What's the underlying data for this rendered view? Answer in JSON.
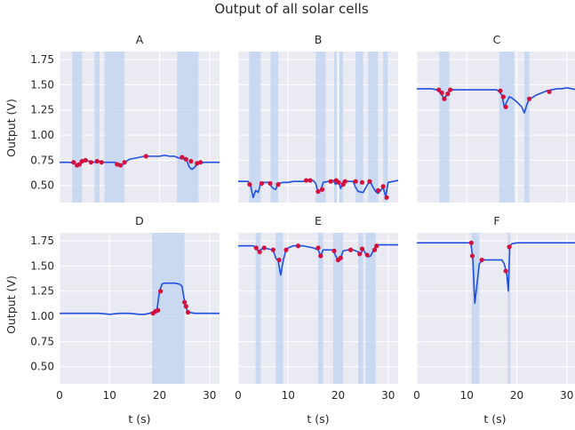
{
  "figure": {
    "suptitle": "Output of all solar cells",
    "xlabel": "t (s)",
    "ylabel": "Output (V)"
  },
  "colors": {
    "panel_background": "#eaeaf2",
    "grid": "#ffffff",
    "line": "#1f4fe0",
    "span": "#c4d6f2",
    "marker": "#d3103d"
  },
  "chart_data": [
    {
      "type": "line",
      "title": "A",
      "xlim": [
        0,
        32
      ],
      "ylim": [
        0.33,
        1.83
      ],
      "xticks": [
        0,
        10,
        20,
        30
      ],
      "yticks": [
        0.5,
        0.75,
        1.0,
        1.25,
        1.5,
        1.75
      ],
      "grid": true,
      "spans": [
        [
          2.5,
          4.5
        ],
        [
          7.0,
          8.0
        ],
        [
          9.0,
          13.0
        ],
        [
          23.5,
          27.8
        ]
      ],
      "series": [
        {
          "x": [
            0,
            1,
            2,
            3,
            3.5,
            4,
            4.5,
            5,
            6,
            7,
            7.5,
            8,
            9,
            10,
            11,
            12,
            12.5,
            13,
            14,
            15,
            16,
            17,
            18,
            19,
            20,
            21,
            22,
            23,
            23.5,
            24,
            25,
            25.5,
            26,
            26.5,
            27,
            27.5,
            28,
            29,
            30,
            31,
            32
          ],
          "y": [
            0.73,
            0.73,
            0.73,
            0.72,
            0.7,
            0.71,
            0.74,
            0.75,
            0.74,
            0.73,
            0.74,
            0.74,
            0.73,
            0.73,
            0.73,
            0.71,
            0.7,
            0.73,
            0.76,
            0.77,
            0.78,
            0.79,
            0.79,
            0.79,
            0.79,
            0.8,
            0.79,
            0.79,
            0.78,
            0.77,
            0.76,
            0.74,
            0.68,
            0.66,
            0.68,
            0.71,
            0.72,
            0.73,
            0.73,
            0.73,
            0.73
          ]
        }
      ],
      "markers": {
        "x": [
          2.8,
          3.5,
          4.0,
          4.5,
          5.2,
          6.3,
          7.5,
          8.4,
          11.5,
          12.2,
          13.0,
          17.3,
          24.5,
          25.3,
          26.3,
          27.5,
          28.2
        ],
        "y": [
          0.73,
          0.7,
          0.71,
          0.74,
          0.75,
          0.73,
          0.74,
          0.73,
          0.71,
          0.7,
          0.73,
          0.79,
          0.78,
          0.76,
          0.74,
          0.72,
          0.73
        ]
      }
    },
    {
      "type": "line",
      "title": "B",
      "xlim": [
        0,
        32
      ],
      "ylim": [
        0.33,
        1.83
      ],
      "xticks": [
        0,
        10,
        20,
        30
      ],
      "yticks": [
        0.5,
        0.75,
        1.0,
        1.25,
        1.5,
        1.75
      ],
      "grid": true,
      "spans": [
        [
          2.2,
          4.5
        ],
        [
          6.5,
          8.0
        ],
        [
          15.5,
          17.5
        ],
        [
          19.2,
          19.7
        ],
        [
          20.2,
          21.0
        ],
        [
          23.5,
          25.0
        ],
        [
          26.0,
          28.0
        ],
        [
          29.0,
          30.0
        ]
      ],
      "series": [
        {
          "x": [
            0,
            1,
            2,
            2.5,
            3,
            3.5,
            4,
            4.5,
            5,
            6,
            7,
            7.5,
            8,
            9,
            10,
            11,
            12,
            13,
            14,
            15,
            15.5,
            16,
            16.5,
            17,
            18,
            19,
            19.5,
            20,
            20.5,
            21,
            22,
            23,
            23.5,
            24,
            25,
            26,
            26.5,
            27,
            27.5,
            28,
            29,
            29.5,
            30,
            31,
            32
          ],
          "y": [
            0.54,
            0.54,
            0.54,
            0.5,
            0.38,
            0.45,
            0.43,
            0.52,
            0.53,
            0.53,
            0.47,
            0.46,
            0.52,
            0.53,
            0.53,
            0.54,
            0.54,
            0.54,
            0.55,
            0.55,
            0.52,
            0.43,
            0.45,
            0.53,
            0.54,
            0.55,
            0.51,
            0.55,
            0.47,
            0.54,
            0.54,
            0.54,
            0.48,
            0.44,
            0.43,
            0.52,
            0.53,
            0.48,
            0.44,
            0.42,
            0.48,
            0.39,
            0.53,
            0.54,
            0.55
          ]
        }
      ],
      "markers": {
        "x": [
          2.3,
          4.7,
          6.4,
          8.0,
          13.6,
          14.4,
          16.0,
          16.8,
          18.5,
          19.6,
          20.1,
          21.0,
          21.4,
          23.5,
          24.8,
          26.3,
          28.0,
          29.0,
          29.7
        ],
        "y": [
          0.51,
          0.52,
          0.52,
          0.51,
          0.55,
          0.55,
          0.44,
          0.46,
          0.54,
          0.55,
          0.53,
          0.51,
          0.54,
          0.54,
          0.53,
          0.54,
          0.45,
          0.49,
          0.38
        ]
      }
    },
    {
      "type": "line",
      "title": "C",
      "xlim": [
        0,
        32
      ],
      "ylim": [
        0.33,
        1.83
      ],
      "xticks": [
        0,
        10,
        20,
        30
      ],
      "yticks": [
        0.5,
        0.75,
        1.0,
        1.25,
        1.5,
        1.75
      ],
      "grid": true,
      "spans": [
        [
          4.5,
          6.5
        ],
        [
          16.5,
          19.5
        ],
        [
          21.5,
          22.5
        ]
      ],
      "series": [
        {
          "x": [
            0,
            1,
            2,
            3,
            4,
            4.5,
            5,
            5.5,
            6,
            6.5,
            7,
            8,
            9,
            10,
            11,
            12,
            13,
            14,
            15,
            16,
            16.5,
            17,
            17.5,
            18,
            18.5,
            19,
            19.5,
            20,
            21,
            21.5,
            22,
            22.5,
            23,
            24,
            25,
            26,
            27,
            28,
            29,
            30,
            31,
            32
          ],
          "y": [
            1.46,
            1.46,
            1.46,
            1.46,
            1.45,
            1.43,
            1.4,
            1.36,
            1.4,
            1.44,
            1.45,
            1.45,
            1.45,
            1.45,
            1.45,
            1.45,
            1.45,
            1.45,
            1.45,
            1.45,
            1.43,
            1.4,
            1.28,
            1.33,
            1.38,
            1.37,
            1.35,
            1.33,
            1.28,
            1.22,
            1.3,
            1.36,
            1.37,
            1.4,
            1.42,
            1.44,
            1.45,
            1.46,
            1.46,
            1.47,
            1.46,
            1.45
          ]
        }
      ],
      "markers": {
        "x": [
          4.4,
          5.0,
          5.5,
          6.2,
          6.7,
          16.7,
          17.3,
          17.8,
          22.5,
          26.5
        ],
        "y": [
          1.45,
          1.42,
          1.36,
          1.41,
          1.45,
          1.44,
          1.38,
          1.28,
          1.36,
          1.43
        ]
      }
    },
    {
      "type": "line",
      "title": "D",
      "xlim": [
        0,
        32
      ],
      "ylim": [
        0.33,
        1.83
      ],
      "xticks": [
        0,
        10,
        20,
        30
      ],
      "yticks": [
        0.5,
        0.75,
        1.0,
        1.25,
        1.5,
        1.75
      ],
      "grid": true,
      "spans": [
        [
          18.5,
          25.0
        ]
      ],
      "series": [
        {
          "x": [
            0,
            2,
            4,
            6,
            8,
            10,
            12,
            14,
            16,
            17,
            18,
            18.5,
            19,
            19.5,
            20,
            20.5,
            21,
            22,
            23,
            24,
            24.5,
            25,
            25.5,
            26,
            27,
            28,
            30,
            32
          ],
          "y": [
            1.03,
            1.03,
            1.03,
            1.03,
            1.03,
            1.02,
            1.03,
            1.03,
            1.02,
            1.02,
            1.03,
            1.04,
            1.05,
            1.07,
            1.25,
            1.32,
            1.33,
            1.33,
            1.33,
            1.32,
            1.3,
            1.15,
            1.06,
            1.04,
            1.03,
            1.03,
            1.03,
            1.03
          ]
        }
      ],
      "markers": {
        "x": [
          18.7,
          19.2,
          19.7,
          20.2,
          25.0,
          25.3,
          25.7
        ],
        "y": [
          1.03,
          1.05,
          1.06,
          1.25,
          1.14,
          1.1,
          1.04
        ]
      }
    },
    {
      "type": "line",
      "title": "E",
      "xlim": [
        0,
        32
      ],
      "ylim": [
        0.33,
        1.83
      ],
      "xticks": [
        0,
        10,
        20,
        30
      ],
      "yticks": [
        0.5,
        0.75,
        1.0,
        1.25,
        1.5,
        1.75
      ],
      "grid": true,
      "spans": [
        [
          3.5,
          4.5
        ],
        [
          7.5,
          9.0
        ],
        [
          16.0,
          17.0
        ],
        [
          19.0,
          21.0
        ],
        [
          24.0,
          25.0
        ],
        [
          25.5,
          27.5
        ]
      ],
      "series": [
        {
          "x": [
            0,
            1,
            2,
            3,
            3.5,
            4,
            4.5,
            5,
            6,
            7,
            7.5,
            8,
            8.5,
            9,
            9.5,
            10,
            11,
            12,
            13,
            14,
            15,
            16,
            16.5,
            17,
            18,
            19,
            19.5,
            20,
            20.5,
            21,
            22,
            23,
            24,
            24.5,
            25,
            25.5,
            26,
            26.5,
            27,
            27.5,
            28,
            29,
            30,
            31,
            32
          ],
          "y": [
            1.7,
            1.7,
            1.7,
            1.7,
            1.69,
            1.65,
            1.66,
            1.68,
            1.67,
            1.66,
            1.58,
            1.55,
            1.41,
            1.55,
            1.65,
            1.68,
            1.7,
            1.7,
            1.7,
            1.69,
            1.68,
            1.66,
            1.6,
            1.66,
            1.66,
            1.66,
            1.6,
            1.56,
            1.58,
            1.65,
            1.66,
            1.66,
            1.64,
            1.62,
            1.67,
            1.62,
            1.59,
            1.6,
            1.65,
            1.7,
            1.71,
            1.71,
            1.71,
            1.71,
            1.71
          ]
        }
      ],
      "markers": {
        "x": [
          3.6,
          4.3,
          5.2,
          7.0,
          8.2,
          9.6,
          12.0,
          16.0,
          16.5,
          19.2,
          20.0,
          20.5,
          22.5,
          24.3,
          24.8,
          25.8,
          27.3,
          27.7
        ],
        "y": [
          1.68,
          1.64,
          1.68,
          1.66,
          1.56,
          1.66,
          1.7,
          1.68,
          1.6,
          1.65,
          1.56,
          1.58,
          1.66,
          1.62,
          1.67,
          1.61,
          1.66,
          1.7
        ]
      }
    },
    {
      "type": "line",
      "title": "F",
      "xlim": [
        0,
        32
      ],
      "ylim": [
        0.33,
        1.83
      ],
      "xticks": [
        0,
        10,
        20,
        30
      ],
      "yticks": [
        0.5,
        0.75,
        1.0,
        1.25,
        1.5,
        1.75
      ],
      "grid": true,
      "spans": [
        [
          11.0,
          12.5
        ],
        [
          18.2,
          18.7
        ]
      ],
      "series": [
        {
          "x": [
            0,
            2,
            4,
            6,
            8,
            10,
            10.8,
            11.2,
            11.6,
            12.0,
            12.5,
            13,
            14,
            15,
            16,
            17,
            17.5,
            18,
            18.3,
            18.6,
            19,
            20,
            22,
            24,
            26,
            28,
            30,
            32
          ],
          "y": [
            1.73,
            1.73,
            1.73,
            1.73,
            1.73,
            1.73,
            1.73,
            1.58,
            1.13,
            1.3,
            1.52,
            1.56,
            1.56,
            1.56,
            1.56,
            1.56,
            1.52,
            1.42,
            1.25,
            1.69,
            1.72,
            1.73,
            1.73,
            1.73,
            1.73,
            1.73,
            1.73,
            1.73
          ]
        }
      ],
      "markers": {
        "x": [
          10.9,
          11.1,
          13.0,
          17.8,
          18.5
        ],
        "y": [
          1.73,
          1.6,
          1.56,
          1.45,
          1.69
        ]
      }
    }
  ]
}
